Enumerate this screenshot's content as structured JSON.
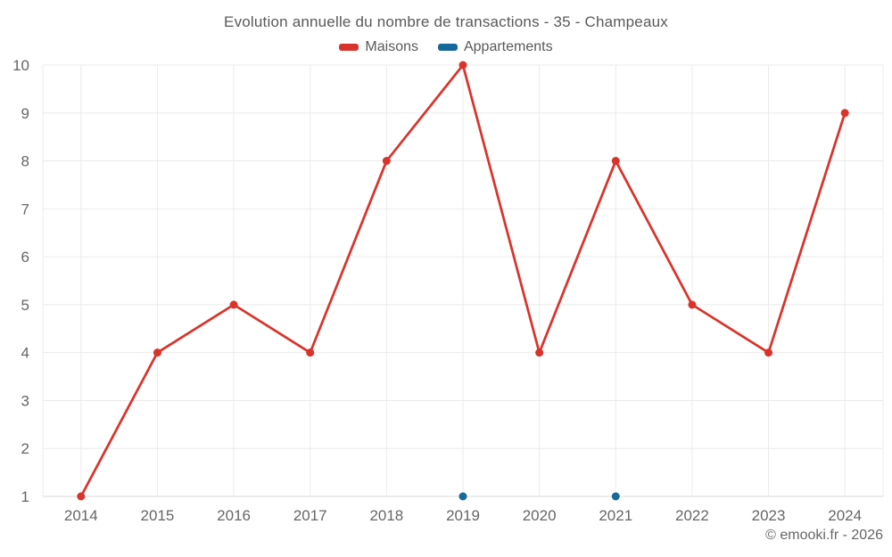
{
  "chart_data": {
    "type": "line",
    "title": "Evolution annuelle du nombre de transactions - 35 - Champeaux",
    "categories": [
      "2014",
      "2015",
      "2016",
      "2017",
      "2018",
      "2019",
      "2020",
      "2021",
      "2022",
      "2023",
      "2024"
    ],
    "series": [
      {
        "name": "Maisons",
        "color": "#d9342c",
        "values": [
          1,
          4,
          5,
          4,
          8,
          10,
          4,
          8,
          5,
          4,
          9
        ]
      },
      {
        "name": "Appartements",
        "color": "#17699c",
        "values": [
          null,
          null,
          null,
          null,
          null,
          1,
          null,
          1,
          null,
          null,
          null
        ]
      }
    ],
    "ylim": [
      1,
      10
    ],
    "y_ticks": [
      1,
      2,
      3,
      4,
      5,
      6,
      7,
      8,
      9,
      10
    ],
    "grid": true,
    "legend_position": "top",
    "xlabel": "",
    "ylabel": ""
  },
  "footer": {
    "copyright": "© emooki.fr - 2026"
  },
  "colors": {
    "grid_line": "#ebebeb",
    "axis_line": "#d8d8d8",
    "background": "#ffffff"
  }
}
